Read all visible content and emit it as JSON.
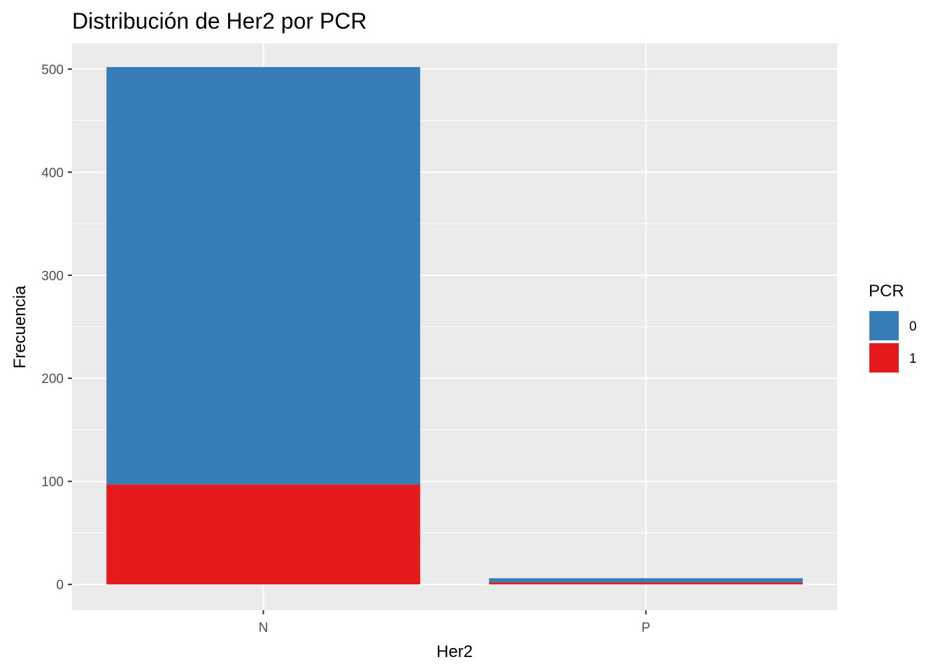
{
  "chart_data": {
    "type": "bar",
    "stacked": true,
    "title": "Distribución de Her2 por PCR",
    "xlabel": "Her2",
    "ylabel": "Frecuencia",
    "categories": [
      "N",
      "P"
    ],
    "series": [
      {
        "name": "0",
        "values": [
          405,
          4
        ],
        "color": "#377EB8"
      },
      {
        "name": "1",
        "values": [
          97,
          2
        ],
        "color": "#E41A1C"
      }
    ],
    "ylim": [
      -25,
      525
    ],
    "yticks": [
      0,
      100,
      200,
      300,
      400,
      500
    ],
    "ytick_labels": [
      "0",
      "100",
      "200",
      "300",
      "400",
      "500"
    ],
    "grid": true,
    "legend": {
      "title": "PCR",
      "position": "right",
      "entries": [
        "0",
        "1"
      ]
    },
    "panel_background": "#EBEBEB",
    "grid_color": "#FFFFFF"
  }
}
